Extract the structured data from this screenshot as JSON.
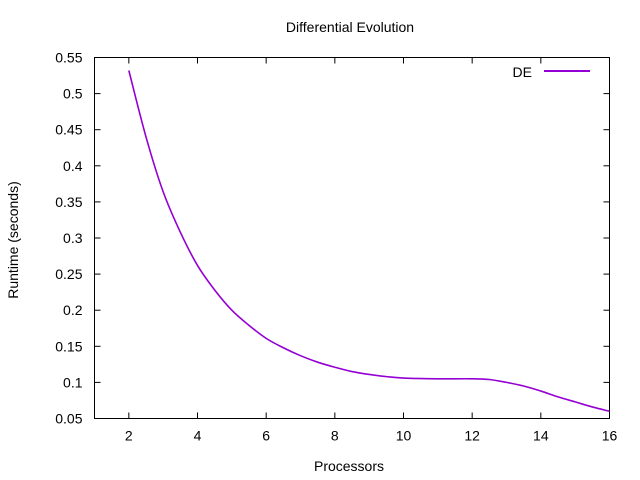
{
  "chart_data": {
    "type": "line",
    "title": "Differential Evolution",
    "xlabel": "Processors",
    "ylabel": "Runtime (seconds)",
    "xlim": [
      1,
      16
    ],
    "ylim": [
      0.05,
      0.55
    ],
    "xticks": [
      2,
      4,
      6,
      8,
      10,
      12,
      14,
      16
    ],
    "yticks": [
      0.05,
      0.1,
      0.15,
      0.2,
      0.25,
      0.3,
      0.35,
      0.4,
      0.45,
      0.5,
      0.55
    ],
    "xtick_labels": [
      "2",
      "4",
      "6",
      "8",
      "10",
      "12",
      "14",
      "16"
    ],
    "ytick_labels": [
      "0.05",
      "0.1",
      "0.15",
      "0.2",
      "0.25",
      "0.3",
      "0.35",
      "0.4",
      "0.45",
      "0.5",
      "0.55"
    ],
    "grid": false,
    "legend_position": "top-right",
    "series": [
      {
        "name": "DE",
        "color": "#9400d3",
        "x": [
          2,
          2.5,
          3,
          3.5,
          4,
          4.5,
          5,
          5.5,
          6,
          6.5,
          7,
          7.5,
          8,
          8.5,
          9,
          9.5,
          10,
          11,
          12,
          12.5,
          13,
          13.5,
          14,
          14.5,
          15,
          15.5,
          16
        ],
        "y": [
          0.532,
          0.44,
          0.364,
          0.308,
          0.262,
          0.228,
          0.2,
          0.179,
          0.161,
          0.148,
          0.137,
          0.128,
          0.121,
          0.115,
          0.111,
          0.108,
          0.106,
          0.105,
          0.105,
          0.104,
          0.1,
          0.095,
          0.088,
          0.08,
          0.073,
          0.066,
          0.06
        ]
      }
    ]
  }
}
